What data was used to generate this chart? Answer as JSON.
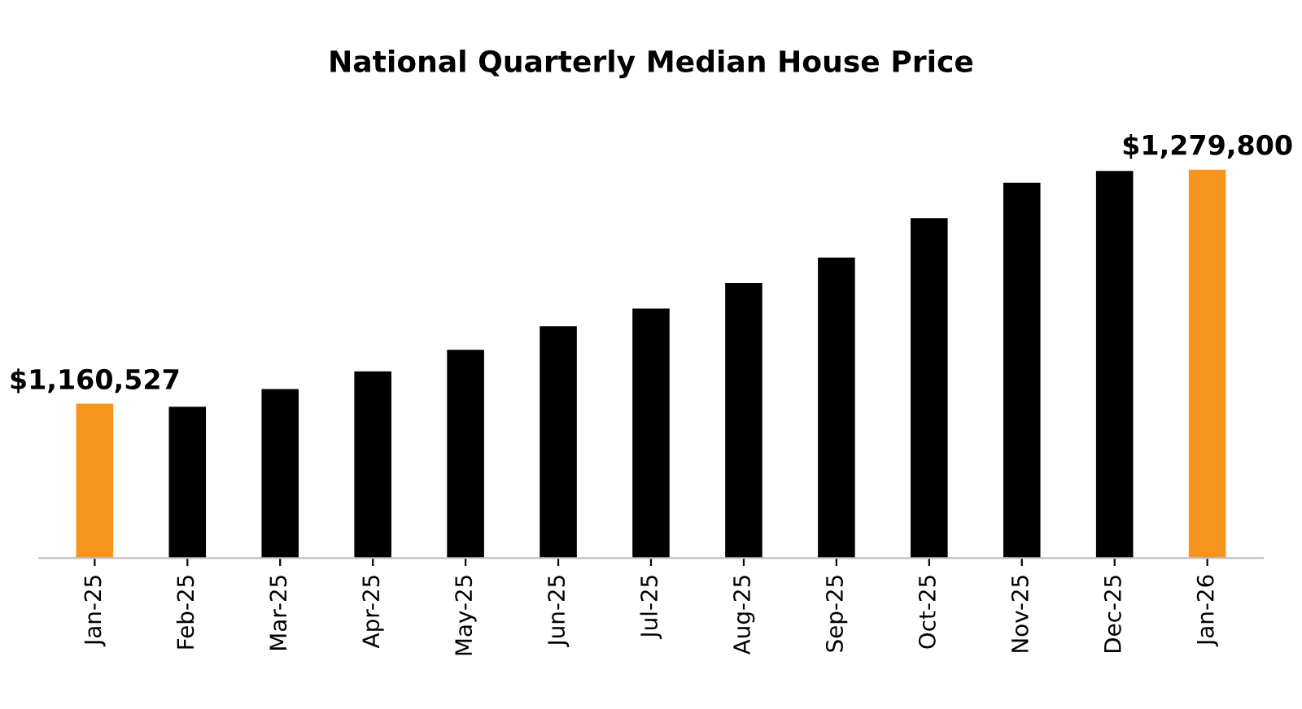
{
  "chart_data": {
    "type": "bar",
    "title": "National Quarterly Median House Price",
    "categories": [
      "Jan-25",
      "Feb-25",
      "Mar-25",
      "Apr-25",
      "May-25",
      "Jun-25",
      "Jul-25",
      "Aug-25",
      "Sep-25",
      "Oct-25",
      "Nov-25",
      "Dec-25",
      "Jan-26"
    ],
    "ylim": [
      1082000,
      1279800
    ],
    "values": [
      1160527,
      1159000,
      1168000,
      1177000,
      1188000,
      1200000,
      1209000,
      1222000,
      1235000,
      1255000,
      1273000,
      1279000,
      1279800
    ],
    "colors": [
      "#f7941d",
      "#000000",
      "#000000",
      "#000000",
      "#000000",
      "#000000",
      "#000000",
      "#000000",
      "#000000",
      "#000000",
      "#000000",
      "#000000",
      "#f7941d"
    ],
    "value_labels": [
      "$1,160,527",
      null,
      null,
      null,
      null,
      null,
      null,
      null,
      null,
      null,
      null,
      null,
      "$1,279,800"
    ],
    "grid": false,
    "legend": false
  }
}
